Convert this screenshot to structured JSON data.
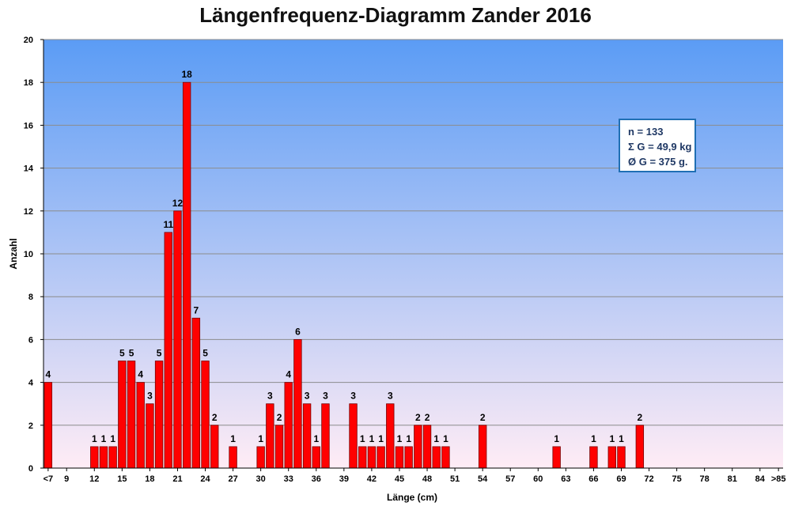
{
  "chart_data": {
    "type": "bar",
    "title": "Längenfrequenz-Diagramm Zander 2016",
    "xlabel": "Länge (cm)",
    "ylabel": "Anzahl",
    "ylim": [
      0,
      20
    ],
    "yticks": [
      "0",
      "2",
      "4",
      "6",
      "8",
      "10",
      "12",
      "14",
      "16",
      "18",
      "20"
    ],
    "grid": true,
    "bar_color": "#ff0000",
    "bar_border_color": "#7a0000",
    "background_gradient": [
      "#5b9cf5",
      "#ffecf5"
    ],
    "categories": [
      "<7",
      "8",
      "9",
      "10",
      "11",
      "12",
      "13",
      "14",
      "15",
      "16",
      "17",
      "18",
      "19",
      "20",
      "21",
      "22",
      "23",
      "24",
      "25",
      "26",
      "27",
      "28",
      "29",
      "30",
      "31",
      "32",
      "33",
      "34",
      "35",
      "36",
      "37",
      "38",
      "39",
      "40",
      "41",
      "42",
      "43",
      "44",
      "45",
      "46",
      "47",
      "48",
      "49",
      "50",
      "51",
      "52",
      "53",
      "54",
      "55",
      "56",
      "57",
      "58",
      "59",
      "60",
      "61",
      "62",
      "63",
      "64",
      "65",
      "66",
      "67",
      "68",
      "69",
      "70",
      "71",
      "72",
      "73",
      "74",
      "75",
      "76",
      "77",
      "78",
      "79",
      "80",
      "81",
      "82",
      "83",
      "84",
      "85",
      ">85"
    ],
    "tick_labels": [
      "<7",
      "9",
      "12",
      "15",
      "18",
      "21",
      "24",
      "27",
      "30",
      "33",
      "36",
      "39",
      "42",
      "45",
      "48",
      "51",
      "54",
      "57",
      "60",
      "63",
      "66",
      "69",
      "72",
      "75",
      "78",
      "81",
      "84",
      ">85"
    ],
    "values": [
      4,
      0,
      0,
      0,
      0,
      1,
      1,
      1,
      5,
      5,
      4,
      3,
      5,
      11,
      12,
      18,
      7,
      5,
      2,
      0,
      1,
      0,
      0,
      1,
      3,
      2,
      4,
      6,
      3,
      1,
      3,
      0,
      0,
      3,
      1,
      1,
      1,
      3,
      1,
      1,
      2,
      2,
      1,
      1,
      0,
      0,
      0,
      2,
      0,
      0,
      0,
      0,
      0,
      0,
      0,
      1,
      0,
      0,
      0,
      1,
      0,
      1,
      1,
      0,
      2,
      0,
      0,
      0,
      0,
      0,
      0,
      0,
      0,
      0,
      0,
      0,
      0,
      0,
      0,
      0
    ]
  },
  "stats_box": {
    "line1": "n = 133",
    "line2": "Σ G = 49,9 kg",
    "line3": "Ø G = 375 g."
  }
}
